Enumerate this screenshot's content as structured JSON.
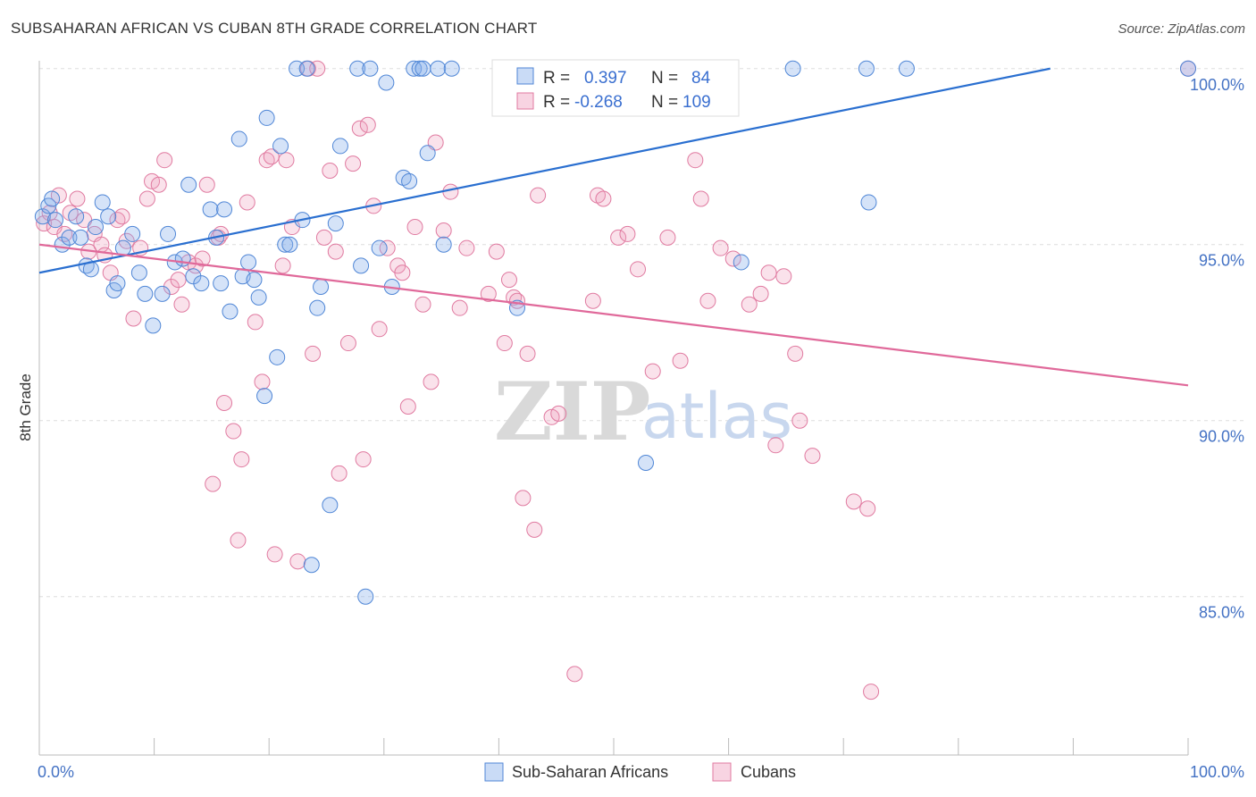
{
  "title": "SUBSAHARAN AFRICAN VS CUBAN 8TH GRADE CORRELATION CHART",
  "source": "Source: ZipAtlas.com",
  "watermark": {
    "zip": "ZIP",
    "atlas": "atlas"
  },
  "colors": {
    "blue": "#4f86d6",
    "blue_fill": "rgba(135,176,235,0.35)",
    "blue_line": "#2a6fd0",
    "pink": "#e07aa0",
    "pink_fill": "rgba(240,160,190,0.30)",
    "pink_line": "#e0699a",
    "grid": "#dddddd",
    "tick_text": "#4472c4"
  },
  "stats": {
    "r_label": "R =",
    "n_label": "N =",
    "series": [
      {
        "r": "0.397",
        "n": "84"
      },
      {
        "r": "-0.268",
        "n": "109"
      }
    ]
  },
  "chart_data": {
    "type": "scatter",
    "title": "SUBSAHARAN AFRICAN VS CUBAN 8TH GRADE CORRELATION CHART",
    "xlabel": "",
    "ylabel": "8th Grade",
    "xlim": [
      0,
      100
    ],
    "ylim": [
      80.5,
      100.4
    ],
    "x_tick_labels": [
      "0.0%",
      "100.0%"
    ],
    "y_ticks": [
      85,
      90,
      95,
      100
    ],
    "y_tick_labels": [
      "85.0%",
      "90.0%",
      "95.0%",
      "100.0%"
    ],
    "grid": "horizontal dashed",
    "legend_position": "bottom",
    "series": [
      {
        "name": "Sub-Saharan Africans",
        "trend": {
          "x": [
            0,
            88
          ],
          "y": [
            94.2,
            100.0
          ]
        },
        "points": [
          [
            0.3,
            95.8
          ],
          [
            0.8,
            96.1
          ],
          [
            1.1,
            96.3
          ],
          [
            1.4,
            95.7
          ],
          [
            2.0,
            95.0
          ],
          [
            2.6,
            95.2
          ],
          [
            3.2,
            95.8
          ],
          [
            3.6,
            95.2
          ],
          [
            4.1,
            94.4
          ],
          [
            4.5,
            94.3
          ],
          [
            4.9,
            95.5
          ],
          [
            5.5,
            96.2
          ],
          [
            6.0,
            95.8
          ],
          [
            6.5,
            93.7
          ],
          [
            6.8,
            93.9
          ],
          [
            7.3,
            94.9
          ],
          [
            8.1,
            95.3
          ],
          [
            8.7,
            94.2
          ],
          [
            9.2,
            93.6
          ],
          [
            9.9,
            92.7
          ],
          [
            10.7,
            93.6
          ],
          [
            11.2,
            95.3
          ],
          [
            11.8,
            94.5
          ],
          [
            12.5,
            94.6
          ],
          [
            13.0,
            96.7
          ],
          [
            13.4,
            94.1
          ],
          [
            14.1,
            93.9
          ],
          [
            14.9,
            96.0
          ],
          [
            15.4,
            95.2
          ],
          [
            15.8,
            93.9
          ],
          [
            16.1,
            96.0
          ],
          [
            16.6,
            93.1
          ],
          [
            17.4,
            98.0
          ],
          [
            17.7,
            94.1
          ],
          [
            18.2,
            94.5
          ],
          [
            18.7,
            94.0
          ],
          [
            19.1,
            93.5
          ],
          [
            19.6,
            90.7
          ],
          [
            19.8,
            98.6
          ],
          [
            20.7,
            91.8
          ],
          [
            21.0,
            97.8
          ],
          [
            21.4,
            95.0
          ],
          [
            21.8,
            95.0
          ],
          [
            22.4,
            100.0
          ],
          [
            22.9,
            95.7
          ],
          [
            23.3,
            100.0
          ],
          [
            23.7,
            85.9
          ],
          [
            24.5,
            93.8
          ],
          [
            24.2,
            93.2
          ],
          [
            25.3,
            87.6
          ],
          [
            25.8,
            95.6
          ],
          [
            26.2,
            97.8
          ],
          [
            27.7,
            100.0
          ],
          [
            28.0,
            94.4
          ],
          [
            28.4,
            85.0
          ],
          [
            28.8,
            100.0
          ],
          [
            29.6,
            94.9
          ],
          [
            30.2,
            99.6
          ],
          [
            30.7,
            93.8
          ],
          [
            31.7,
            96.9
          ],
          [
            32.2,
            96.8
          ],
          [
            32.6,
            100.0
          ],
          [
            33.1,
            100.0
          ],
          [
            33.4,
            100.0
          ],
          [
            33.8,
            97.6
          ],
          [
            34.7,
            100.0
          ],
          [
            35.2,
            95.0
          ],
          [
            35.9,
            100.0
          ],
          [
            40.6,
            100.0
          ],
          [
            41.0,
            100.0
          ],
          [
            41.6,
            93.2
          ],
          [
            44.2,
            100.0
          ],
          [
            45.4,
            99.1
          ],
          [
            47.0,
            100.0
          ],
          [
            47.9,
            100.0
          ],
          [
            52.8,
            88.8
          ],
          [
            61.1,
            94.5
          ],
          [
            65.6,
            100.0
          ],
          [
            72.2,
            96.2
          ],
          [
            72.0,
            100.0
          ],
          [
            75.5,
            100.0
          ],
          [
            100.0,
            100.0
          ]
        ]
      },
      {
        "name": "Cubans",
        "trend": {
          "x": [
            0,
            100
          ],
          "y": [
            95.0,
            91.0
          ]
        },
        "points": [
          [
            0.4,
            95.6
          ],
          [
            0.9,
            95.9
          ],
          [
            1.3,
            95.5
          ],
          [
            1.7,
            96.4
          ],
          [
            2.2,
            95.3
          ],
          [
            2.7,
            95.9
          ],
          [
            3.3,
            96.3
          ],
          [
            3.9,
            95.7
          ],
          [
            4.3,
            94.8
          ],
          [
            4.8,
            95.3
          ],
          [
            5.4,
            95.0
          ],
          [
            5.7,
            94.7
          ],
          [
            6.2,
            94.2
          ],
          [
            6.8,
            95.7
          ],
          [
            7.2,
            95.8
          ],
          [
            7.6,
            95.1
          ],
          [
            8.2,
            92.9
          ],
          [
            8.8,
            94.9
          ],
          [
            9.4,
            96.3
          ],
          [
            9.8,
            96.8
          ],
          [
            10.4,
            96.7
          ],
          [
            10.9,
            97.4
          ],
          [
            11.5,
            93.8
          ],
          [
            12.1,
            94.0
          ],
          [
            12.4,
            93.3
          ],
          [
            13.0,
            94.5
          ],
          [
            13.6,
            94.4
          ],
          [
            14.2,
            94.6
          ],
          [
            14.6,
            96.7
          ],
          [
            15.1,
            88.2
          ],
          [
            15.6,
            95.2
          ],
          [
            15.8,
            95.3
          ],
          [
            16.1,
            90.5
          ],
          [
            16.9,
            89.7
          ],
          [
            17.3,
            86.6
          ],
          [
            17.6,
            88.9
          ],
          [
            18.1,
            96.2
          ],
          [
            18.8,
            92.8
          ],
          [
            19.4,
            91.1
          ],
          [
            19.8,
            97.4
          ],
          [
            20.2,
            97.5
          ],
          [
            20.5,
            86.2
          ],
          [
            21.2,
            94.4
          ],
          [
            21.5,
            97.4
          ],
          [
            22.0,
            95.5
          ],
          [
            22.5,
            86.0
          ],
          [
            23.4,
            100.0
          ],
          [
            23.8,
            91.9
          ],
          [
            24.2,
            100.0
          ],
          [
            24.8,
            95.2
          ],
          [
            25.3,
            97.1
          ],
          [
            25.8,
            94.8
          ],
          [
            26.1,
            88.5
          ],
          [
            26.9,
            92.2
          ],
          [
            27.3,
            97.3
          ],
          [
            27.9,
            98.3
          ],
          [
            28.2,
            88.9
          ],
          [
            28.6,
            98.4
          ],
          [
            29.1,
            96.1
          ],
          [
            29.6,
            92.6
          ],
          [
            30.3,
            94.9
          ],
          [
            31.2,
            94.4
          ],
          [
            31.6,
            94.2
          ],
          [
            32.1,
            90.4
          ],
          [
            32.7,
            95.5
          ],
          [
            33.4,
            93.3
          ],
          [
            34.1,
            91.1
          ],
          [
            34.5,
            97.9
          ],
          [
            35.2,
            95.4
          ],
          [
            35.8,
            96.5
          ],
          [
            36.6,
            93.2
          ],
          [
            37.2,
            94.9
          ],
          [
            39.1,
            93.6
          ],
          [
            39.8,
            94.8
          ],
          [
            40.5,
            92.2
          ],
          [
            40.9,
            94.0
          ],
          [
            41.3,
            93.5
          ],
          [
            41.6,
            93.4
          ],
          [
            42.1,
            87.8
          ],
          [
            42.5,
            91.9
          ],
          [
            43.1,
            86.9
          ],
          [
            43.4,
            96.4
          ],
          [
            44.6,
            90.1
          ],
          [
            45.2,
            90.2
          ],
          [
            46.6,
            82.8
          ],
          [
            48.2,
            93.4
          ],
          [
            48.6,
            96.4
          ],
          [
            49.1,
            96.3
          ],
          [
            50.4,
            95.2
          ],
          [
            51.2,
            95.3
          ],
          [
            52.1,
            94.3
          ],
          [
            53.4,
            91.4
          ],
          [
            54.7,
            95.2
          ],
          [
            55.8,
            91.7
          ],
          [
            57.1,
            97.4
          ],
          [
            57.6,
            96.3
          ],
          [
            58.2,
            93.4
          ],
          [
            59.3,
            94.9
          ],
          [
            60.4,
            94.6
          ],
          [
            61.8,
            93.3
          ],
          [
            62.8,
            93.6
          ],
          [
            63.5,
            94.2
          ],
          [
            64.1,
            89.3
          ],
          [
            64.8,
            94.1
          ],
          [
            65.8,
            91.9
          ],
          [
            66.2,
            90.0
          ],
          [
            67.3,
            89.0
          ],
          [
            70.9,
            87.7
          ],
          [
            72.1,
            87.5
          ],
          [
            72.4,
            82.3
          ],
          [
            100.0,
            100.0
          ]
        ]
      }
    ]
  },
  "legend": {
    "items": [
      {
        "label": "Sub-Saharan Africans"
      },
      {
        "label": "Cubans"
      }
    ]
  }
}
